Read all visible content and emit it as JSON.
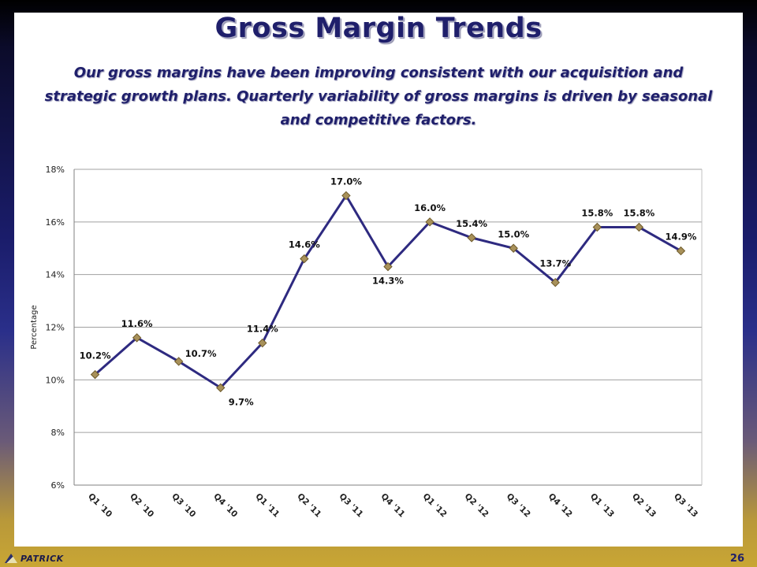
{
  "slide": {
    "title": "Gross Margin Trends",
    "subtitle": "Our gross margins have been improving consistent with our acquisition and strategic growth plans. Quarterly variability of gross margins is driven by seasonal and competitive factors.",
    "page_number": "26",
    "logo_text": "PATRICK"
  },
  "chart_data": {
    "type": "line",
    "ylabel": "Percentage",
    "xlabel": "",
    "ylim": [
      6,
      18
    ],
    "yticks": [
      6,
      8,
      10,
      12,
      14,
      16,
      18
    ],
    "ytick_labels": [
      "6%",
      "8%",
      "10%",
      "12%",
      "14%",
      "16%",
      "18%"
    ],
    "grid": true,
    "categories": [
      "Q1 '10",
      "Q2 '10",
      "Q3 '10",
      "Q4 '10",
      "Q1 '11",
      "Q2 '11",
      "Q3 '11",
      "Q4 '11",
      "Q1 '12",
      "Q2 '12",
      "Q3 '12",
      "Q4 '12",
      "Q1 '13",
      "Q2 '13",
      "Q3 '13"
    ],
    "values": [
      10.2,
      11.6,
      10.7,
      9.7,
      11.4,
      14.6,
      17.0,
      14.3,
      16.0,
      15.4,
      15.0,
      13.7,
      15.8,
      15.8,
      14.9
    ],
    "data_labels": [
      "10.2%",
      "11.6%",
      "10.7%",
      "9.7%",
      "11.4%",
      "14.6%",
      "17.0%",
      "14.3%",
      "16.0%",
      "15.4%",
      "15.0%",
      "13.7%",
      "15.8%",
      "15.8%",
      "14.9%"
    ],
    "colors": {
      "line": "#2e2a80",
      "marker_fill": "#a8915a",
      "marker_stroke": "#6e5a2a",
      "grid": "#a0a0a0"
    }
  }
}
